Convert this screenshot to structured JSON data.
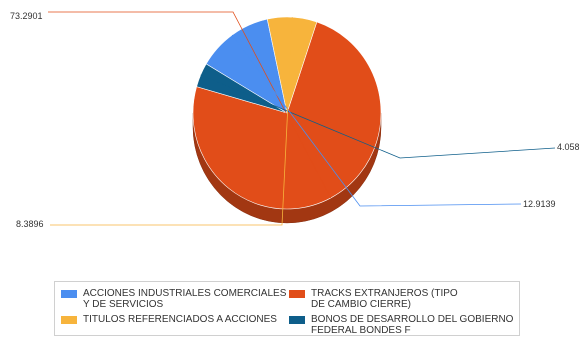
{
  "chart_data": {
    "type": "pie",
    "title": "",
    "three_d": true,
    "legend_position": "bottom",
    "slices": [
      {
        "label": "TRACKS EXTRANJEROS (TIPO DE CAMBIO CIERRE)",
        "value": 73.2901,
        "value_label": "73.2901",
        "color": "#e14d19"
      },
      {
        "label": "BONOS DE DESARROLLO DEL GOBIERNO FEDERAL BONDES F",
        "value": 4.058,
        "value_label": "4.058",
        "color": "#0e5e8a"
      },
      {
        "label": "ACCIONES INDUSTRIALES COMERCIALES Y DE SERVICIOS",
        "value": 12.9139,
        "value_label": "12.9139",
        "color": "#4b8ef0"
      },
      {
        "label": "TITULOS REFERENCIADOS A ACCIONES",
        "value": 8.3896,
        "value_label": "8.3896",
        "color": "#f7b43c"
      }
    ],
    "legend": [
      {
        "line1": "ACCIONES INDUSTRIALES COMERCIALES",
        "line2": "Y DE SERVICIOS",
        "color": "#4b8ef0"
      },
      {
        "line1": "TRACKS EXTRANJEROS (TIPO",
        "line2": "DE CAMBIO CIERRE)",
        "color": "#e14d19"
      },
      {
        "line1": "TITULOS REFERENCIADOS A ACCIONES",
        "line2": "",
        "color": "#f7b43c"
      },
      {
        "line1": "BONOS DE DESARROLLO DEL GOBIERNO",
        "line2": "FEDERAL BONDES F",
        "color": "#0e5e8a"
      }
    ]
  }
}
